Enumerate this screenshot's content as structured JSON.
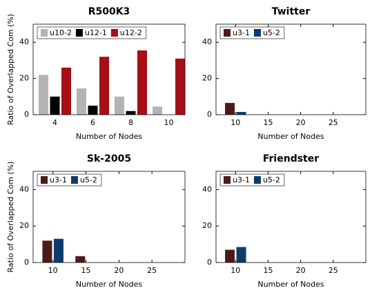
{
  "chart_data": [
    {
      "type": "bar",
      "title": "R500K3",
      "xlabel": "Number of Nodes",
      "ylabel": "Ratio of Overlapped Com (%)",
      "categories": [
        "4",
        "6",
        "8",
        "10"
      ],
      "series": [
        {
          "name": "u10-2",
          "color": "#b3b3b3",
          "values": [
            22,
            14.5,
            10,
            4.5
          ]
        },
        {
          "name": "u12-1",
          "color": "#000000",
          "values": [
            10,
            5,
            2,
            0
          ]
        },
        {
          "name": "u12-2",
          "color": "#a50f15",
          "values": [
            26,
            32,
            35.5,
            31
          ]
        }
      ],
      "ylim": [
        0,
        50
      ],
      "yticks": [
        0,
        20,
        40
      ],
      "legend": "upper left"
    },
    {
      "type": "bar",
      "title": "Twitter",
      "xlabel": "Number of Nodes",
      "x": [
        10,
        15,
        20,
        25
      ],
      "series": [
        {
          "name": "u3-1",
          "color": "#4d1a1a",
          "values": [
            6.5,
            0,
            0,
            0
          ]
        },
        {
          "name": "u5-2",
          "color": "#0b3c6b",
          "values": [
            1.5,
            0,
            0,
            0
          ]
        }
      ],
      "xlim": [
        7,
        30
      ],
      "xticks": [
        10,
        15,
        20,
        25
      ],
      "ylim": [
        0,
        50
      ],
      "yticks": [
        0,
        20,
        40
      ],
      "legend": "upper left"
    },
    {
      "type": "bar",
      "title": "Sk-2005",
      "xlabel": "Number of Nodes",
      "ylabel": "Ratio of Overlapped Com (%)",
      "x": [
        10,
        15,
        20,
        25
      ],
      "series": [
        {
          "name": "u3-1",
          "color": "#4d1a1a",
          "values": [
            12,
            3.5,
            0,
            0
          ]
        },
        {
          "name": "u5-2",
          "color": "#0b3c6b",
          "values": [
            13,
            0,
            0,
            0
          ]
        }
      ],
      "xlim": [
        7,
        30
      ],
      "xticks": [
        10,
        15,
        20,
        25
      ],
      "ylim": [
        0,
        50
      ],
      "yticks": [
        0,
        20,
        40
      ],
      "legend": "upper left"
    },
    {
      "type": "bar",
      "title": "Friendster",
      "xlabel": "Number of Nodes",
      "x": [
        10,
        15,
        20,
        25
      ],
      "series": [
        {
          "name": "u3-1",
          "color": "#4d1a1a",
          "values": [
            7,
            0,
            0,
            0
          ]
        },
        {
          "name": "u5-2",
          "color": "#0b3c6b",
          "values": [
            8.5,
            0,
            0,
            0
          ]
        }
      ],
      "xlim": [
        7,
        30
      ],
      "xticks": [
        10,
        15,
        20,
        25
      ],
      "ylim": [
        0,
        50
      ],
      "yticks": [
        0,
        20,
        40
      ],
      "legend": "upper left"
    }
  ]
}
